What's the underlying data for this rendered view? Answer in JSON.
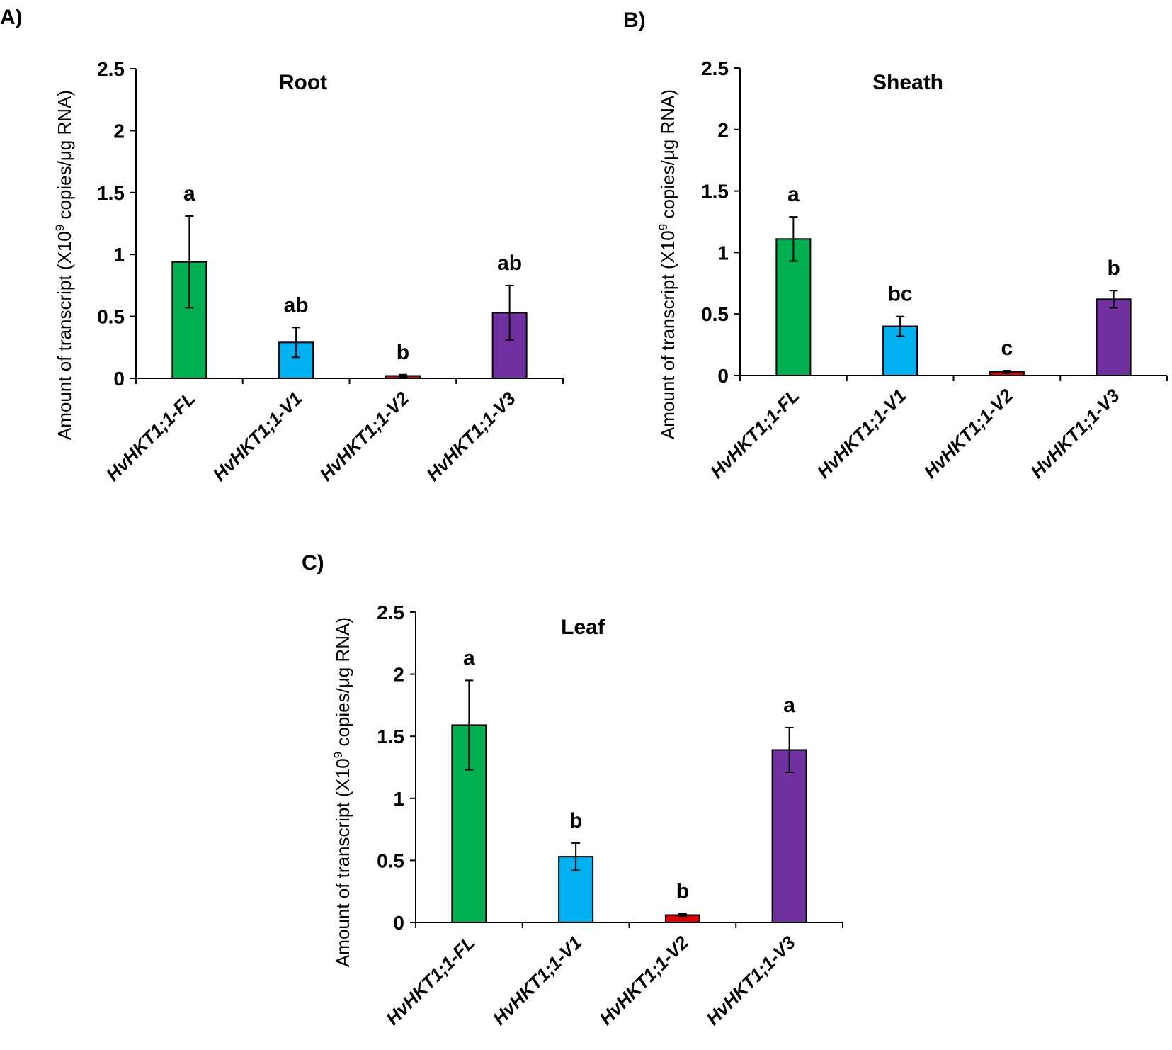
{
  "colors": {
    "FL": "#00b050",
    "V1": "#00b0f0",
    "V2": "#e00000",
    "V3": "#7030a0",
    "axis": "#000000"
  },
  "chart_data": [
    {
      "type": "bar",
      "panel": "A)",
      "title": "Root",
      "ylabel_prefix": "Amount of transcript (X10",
      "ylabel_sup": "9",
      "ylabel_suffix": " copies/μg RNA)",
      "ylim": [
        0,
        2.5
      ],
      "yticks": [
        "0",
        "0.5",
        "1",
        "1.5",
        "2",
        "2.5"
      ],
      "categories": [
        "HvHKT1;1-FL",
        "HvHKT1;1-V1",
        "HvHKT1;1-V2",
        "HvHKT1;1-V3"
      ],
      "values": [
        0.94,
        0.29,
        0.02,
        0.53
      ],
      "errors": [
        0.37,
        0.12,
        0.01,
        0.22
      ],
      "significance": [
        "a",
        "ab",
        "b",
        "ab"
      ]
    },
    {
      "type": "bar",
      "panel": "B)",
      "title": "Sheath",
      "ylabel_prefix": "Amount of transcript (X10",
      "ylabel_sup": "9",
      "ylabel_suffix": " copies/μg RNA)",
      "ylim": [
        0,
        2.5
      ],
      "yticks": [
        "0",
        "0.5",
        "1",
        "1.5",
        "2",
        "2.5"
      ],
      "categories": [
        "HvHKT1;1-FL",
        "HvHKT1;1-V1",
        "HvHKT1;1-V2",
        "HvHKT1;1-V3"
      ],
      "values": [
        1.11,
        0.4,
        0.03,
        0.62
      ],
      "errors": [
        0.18,
        0.08,
        0.01,
        0.07
      ],
      "significance": [
        "a",
        "bc",
        "c",
        "b"
      ]
    },
    {
      "type": "bar",
      "panel": "C)",
      "title": "Leaf",
      "ylabel_prefix": "Amount of transcript (X10",
      "ylabel_sup": "9",
      "ylabel_suffix": " copies/μg RNA)",
      "ylim": [
        0,
        2.5
      ],
      "yticks": [
        "0",
        "0.5",
        "1",
        "1.5",
        "2",
        "2.5"
      ],
      "categories": [
        "HvHKT1;1-FL",
        "HvHKT1;1-V1",
        "HvHKT1;1-V2",
        "HvHKT1;1-V3"
      ],
      "values": [
        1.59,
        0.53,
        0.06,
        1.39
      ],
      "errors": [
        0.36,
        0.11,
        0.01,
        0.18
      ],
      "significance": [
        "a",
        "b",
        "b",
        "a"
      ]
    }
  ]
}
